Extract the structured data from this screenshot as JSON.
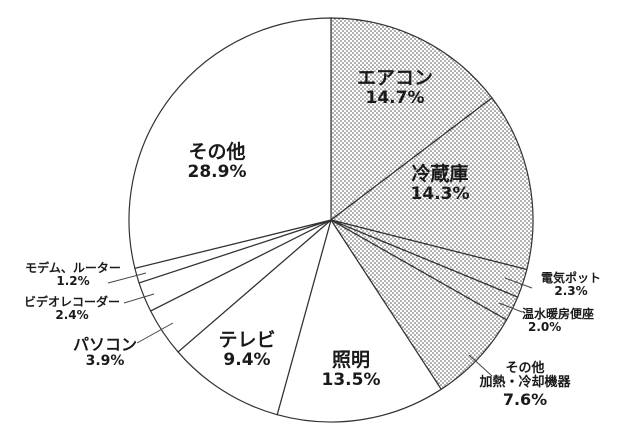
{
  "chart_data": {
    "type": "pie",
    "title": "",
    "start_angle_deg": 0,
    "direction": "clockwise",
    "center": [
      331,
      220
    ],
    "radius": 202,
    "slices": [
      {
        "label": "エアコン",
        "value": 14.7,
        "pct_text": "14.7%",
        "fill": "dotted"
      },
      {
        "label": "冷蔵庫",
        "value": 14.3,
        "pct_text": "14.3%",
        "fill": "dotted"
      },
      {
        "label": "電気ポット",
        "value": 2.3,
        "pct_text": "2.3%",
        "fill": "dotted"
      },
      {
        "label": "温水暖房便座",
        "value": 2.0,
        "pct_text": "2.0%",
        "fill": "dotted"
      },
      {
        "label": "その他 加熱・冷却機器",
        "value": 7.6,
        "pct_text": "7.6%",
        "fill": "dotted"
      },
      {
        "label": "照明",
        "value": 13.5,
        "pct_text": "13.5%",
        "fill": "white"
      },
      {
        "label": "テレビ",
        "value": 9.4,
        "pct_text": "9.4%",
        "fill": "white"
      },
      {
        "label": "パソコン",
        "value": 3.9,
        "pct_text": "3.9%",
        "fill": "white"
      },
      {
        "label": "ビデオレコーダー",
        "value": 2.4,
        "pct_text": "2.4%",
        "fill": "white"
      },
      {
        "label": "モデム、ルーター",
        "value": 1.2,
        "pct_text": "1.2%",
        "fill": "white"
      },
      {
        "label": "その他",
        "value": 28.9,
        "pct_text": "28.9%",
        "fill": "white"
      }
    ],
    "legend": "none (labels placed on/near slices)"
  },
  "labels": {
    "aircon": {
      "name": "エアコン",
      "pct": "14.7%"
    },
    "fridge": {
      "name": "冷蔵庫",
      "pct": "14.3%"
    },
    "kettle": {
      "name": "電気ポット",
      "pct": "2.3%"
    },
    "toilet": {
      "name": "温水暖房便座",
      "pct": "2.0%"
    },
    "other_heat_1": "その他",
    "other_heat_2": "加熱・冷却機器",
    "other_heat_pct": "7.6%",
    "lighting": {
      "name": "照明",
      "pct": "13.5%"
    },
    "tv": {
      "name": "テレビ",
      "pct": "9.4%"
    },
    "pc": {
      "name": "パソコン",
      "pct": "3.9%"
    },
    "video": {
      "name": "ビデオレコーダー",
      "pct": "2.4%"
    },
    "modem": {
      "name": "モデム、ルーター",
      "pct": "1.2%"
    },
    "other": {
      "name": "その他",
      "pct": "28.9%"
    }
  },
  "colors": {
    "stroke": "#333333",
    "dot": "#555555",
    "text": "#1a1a1a"
  }
}
